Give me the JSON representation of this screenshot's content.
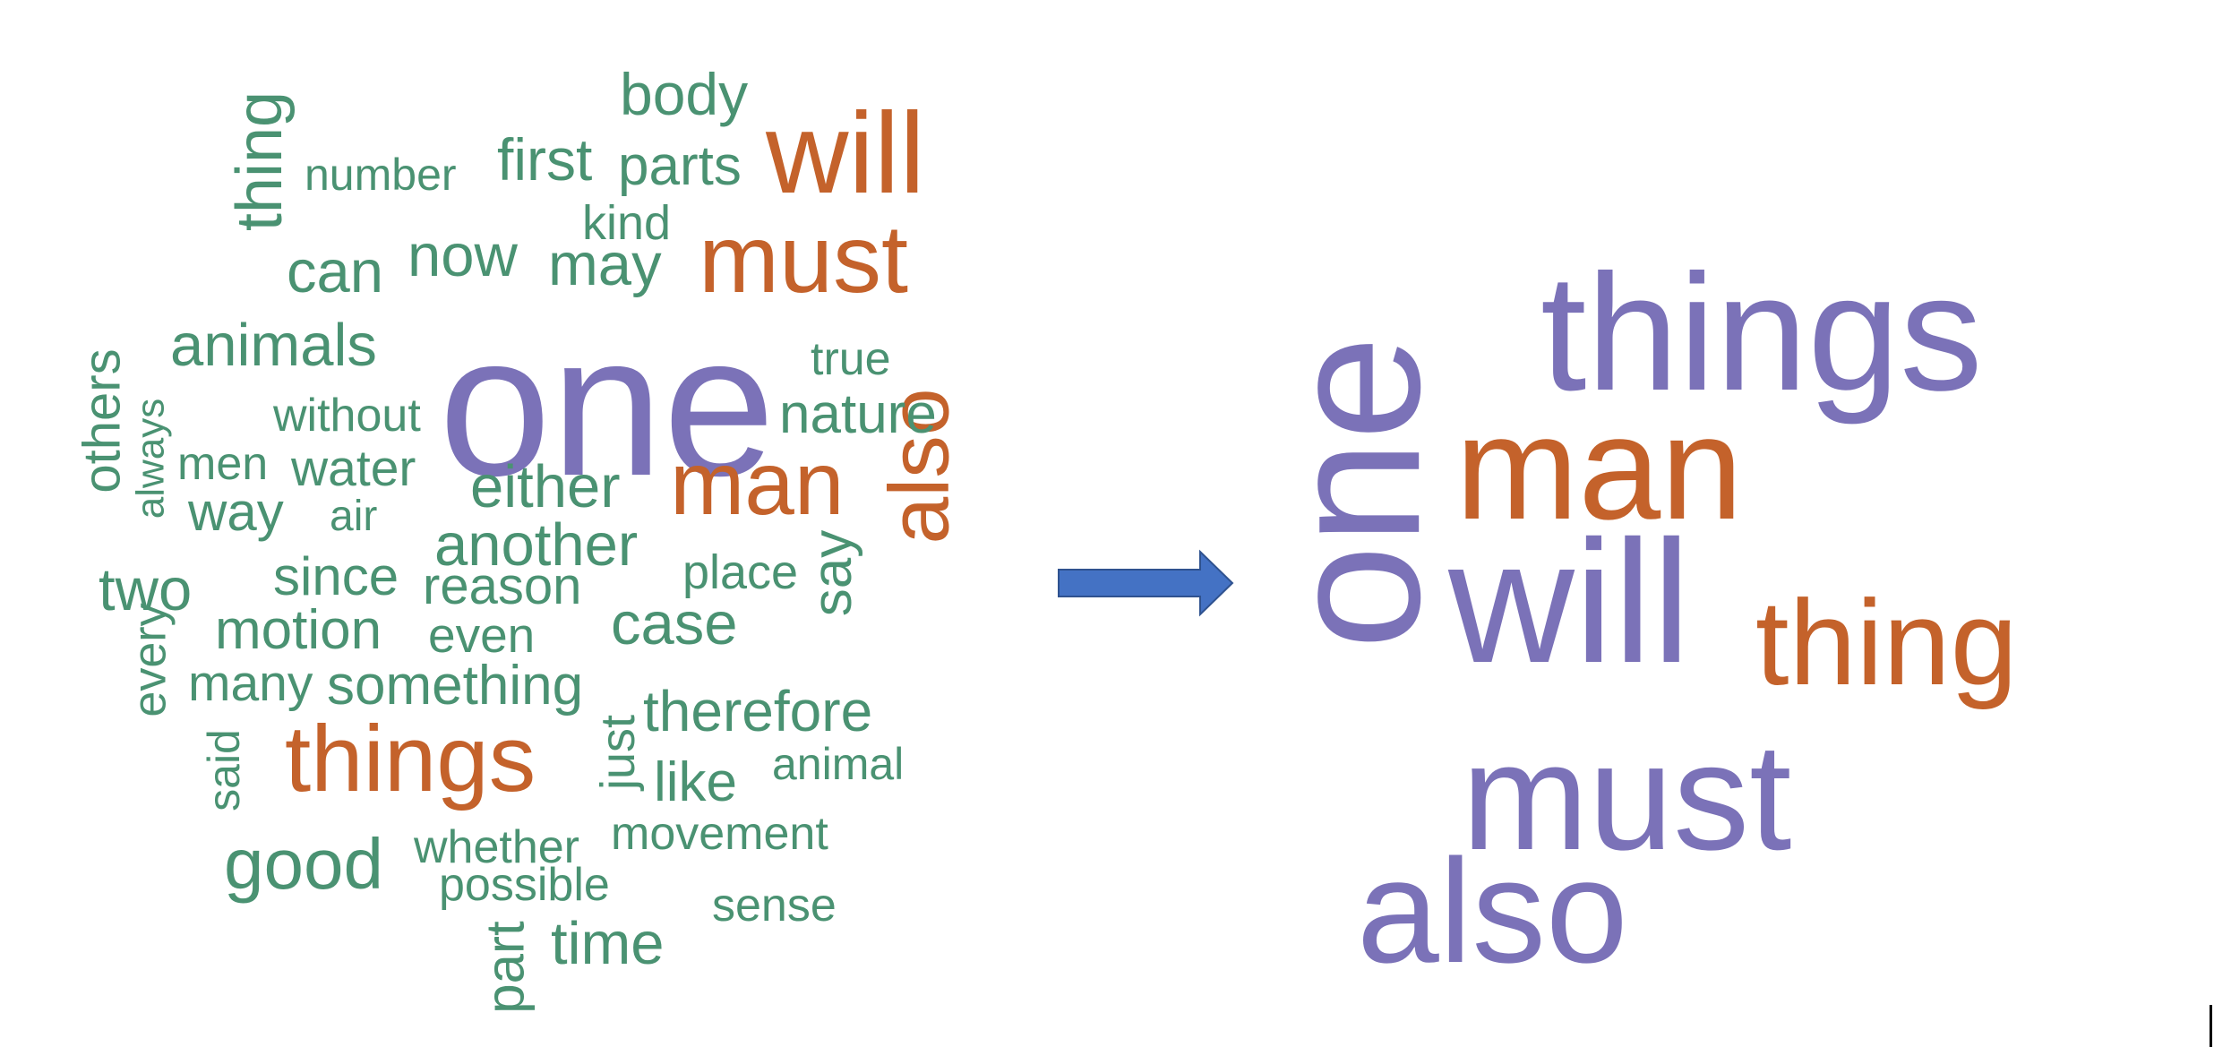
{
  "colors": {
    "green": "#4a9272",
    "orange": "#c4622b",
    "purple": "#7b72b8",
    "arrow_fill": "#4472c4",
    "arrow_stroke": "#2f528f"
  },
  "icons": {
    "arrow": "right-arrow-icon"
  },
  "left_cloud": {
    "words": [
      {
        "text": "one",
        "color": "purple"
      },
      {
        "text": "will",
        "color": "orange"
      },
      {
        "text": "must",
        "color": "orange"
      },
      {
        "text": "man",
        "color": "orange"
      },
      {
        "text": "also",
        "color": "orange"
      },
      {
        "text": "things",
        "color": "orange"
      },
      {
        "text": "thing",
        "color": "green"
      },
      {
        "text": "body",
        "color": "green"
      },
      {
        "text": "number",
        "color": "green"
      },
      {
        "text": "first",
        "color": "green"
      },
      {
        "text": "parts",
        "color": "green"
      },
      {
        "text": "kind",
        "color": "green"
      },
      {
        "text": "can",
        "color": "green"
      },
      {
        "text": "now",
        "color": "green"
      },
      {
        "text": "may",
        "color": "green"
      },
      {
        "text": "animals",
        "color": "green"
      },
      {
        "text": "true",
        "color": "green"
      },
      {
        "text": "nature",
        "color": "green"
      },
      {
        "text": "without",
        "color": "green"
      },
      {
        "text": "others",
        "color": "green"
      },
      {
        "text": "always",
        "color": "green"
      },
      {
        "text": "men",
        "color": "green"
      },
      {
        "text": "water",
        "color": "green"
      },
      {
        "text": "either",
        "color": "green"
      },
      {
        "text": "way",
        "color": "green"
      },
      {
        "text": "air",
        "color": "green"
      },
      {
        "text": "another",
        "color": "green"
      },
      {
        "text": "place",
        "color": "green"
      },
      {
        "text": "two",
        "color": "green"
      },
      {
        "text": "since",
        "color": "green"
      },
      {
        "text": "reason",
        "color": "green"
      },
      {
        "text": "say",
        "color": "green"
      },
      {
        "text": "case",
        "color": "green"
      },
      {
        "text": "motion",
        "color": "green"
      },
      {
        "text": "even",
        "color": "green"
      },
      {
        "text": "every",
        "color": "green"
      },
      {
        "text": "many",
        "color": "green"
      },
      {
        "text": "something",
        "color": "green"
      },
      {
        "text": "therefore",
        "color": "green"
      },
      {
        "text": "said",
        "color": "green"
      },
      {
        "text": "just",
        "color": "green"
      },
      {
        "text": "like",
        "color": "green"
      },
      {
        "text": "animal",
        "color": "green"
      },
      {
        "text": "good",
        "color": "green"
      },
      {
        "text": "whether",
        "color": "green"
      },
      {
        "text": "movement",
        "color": "green"
      },
      {
        "text": "possible",
        "color": "green"
      },
      {
        "text": "sense",
        "color": "green"
      },
      {
        "text": "part",
        "color": "green"
      },
      {
        "text": "time",
        "color": "green"
      }
    ]
  },
  "right_cloud": {
    "words": [
      {
        "text": "things",
        "color": "purple"
      },
      {
        "text": "one",
        "color": "purple"
      },
      {
        "text": "man",
        "color": "orange"
      },
      {
        "text": "will",
        "color": "purple"
      },
      {
        "text": "thing",
        "color": "orange"
      },
      {
        "text": "must",
        "color": "purple"
      },
      {
        "text": "also",
        "color": "purple"
      }
    ]
  }
}
